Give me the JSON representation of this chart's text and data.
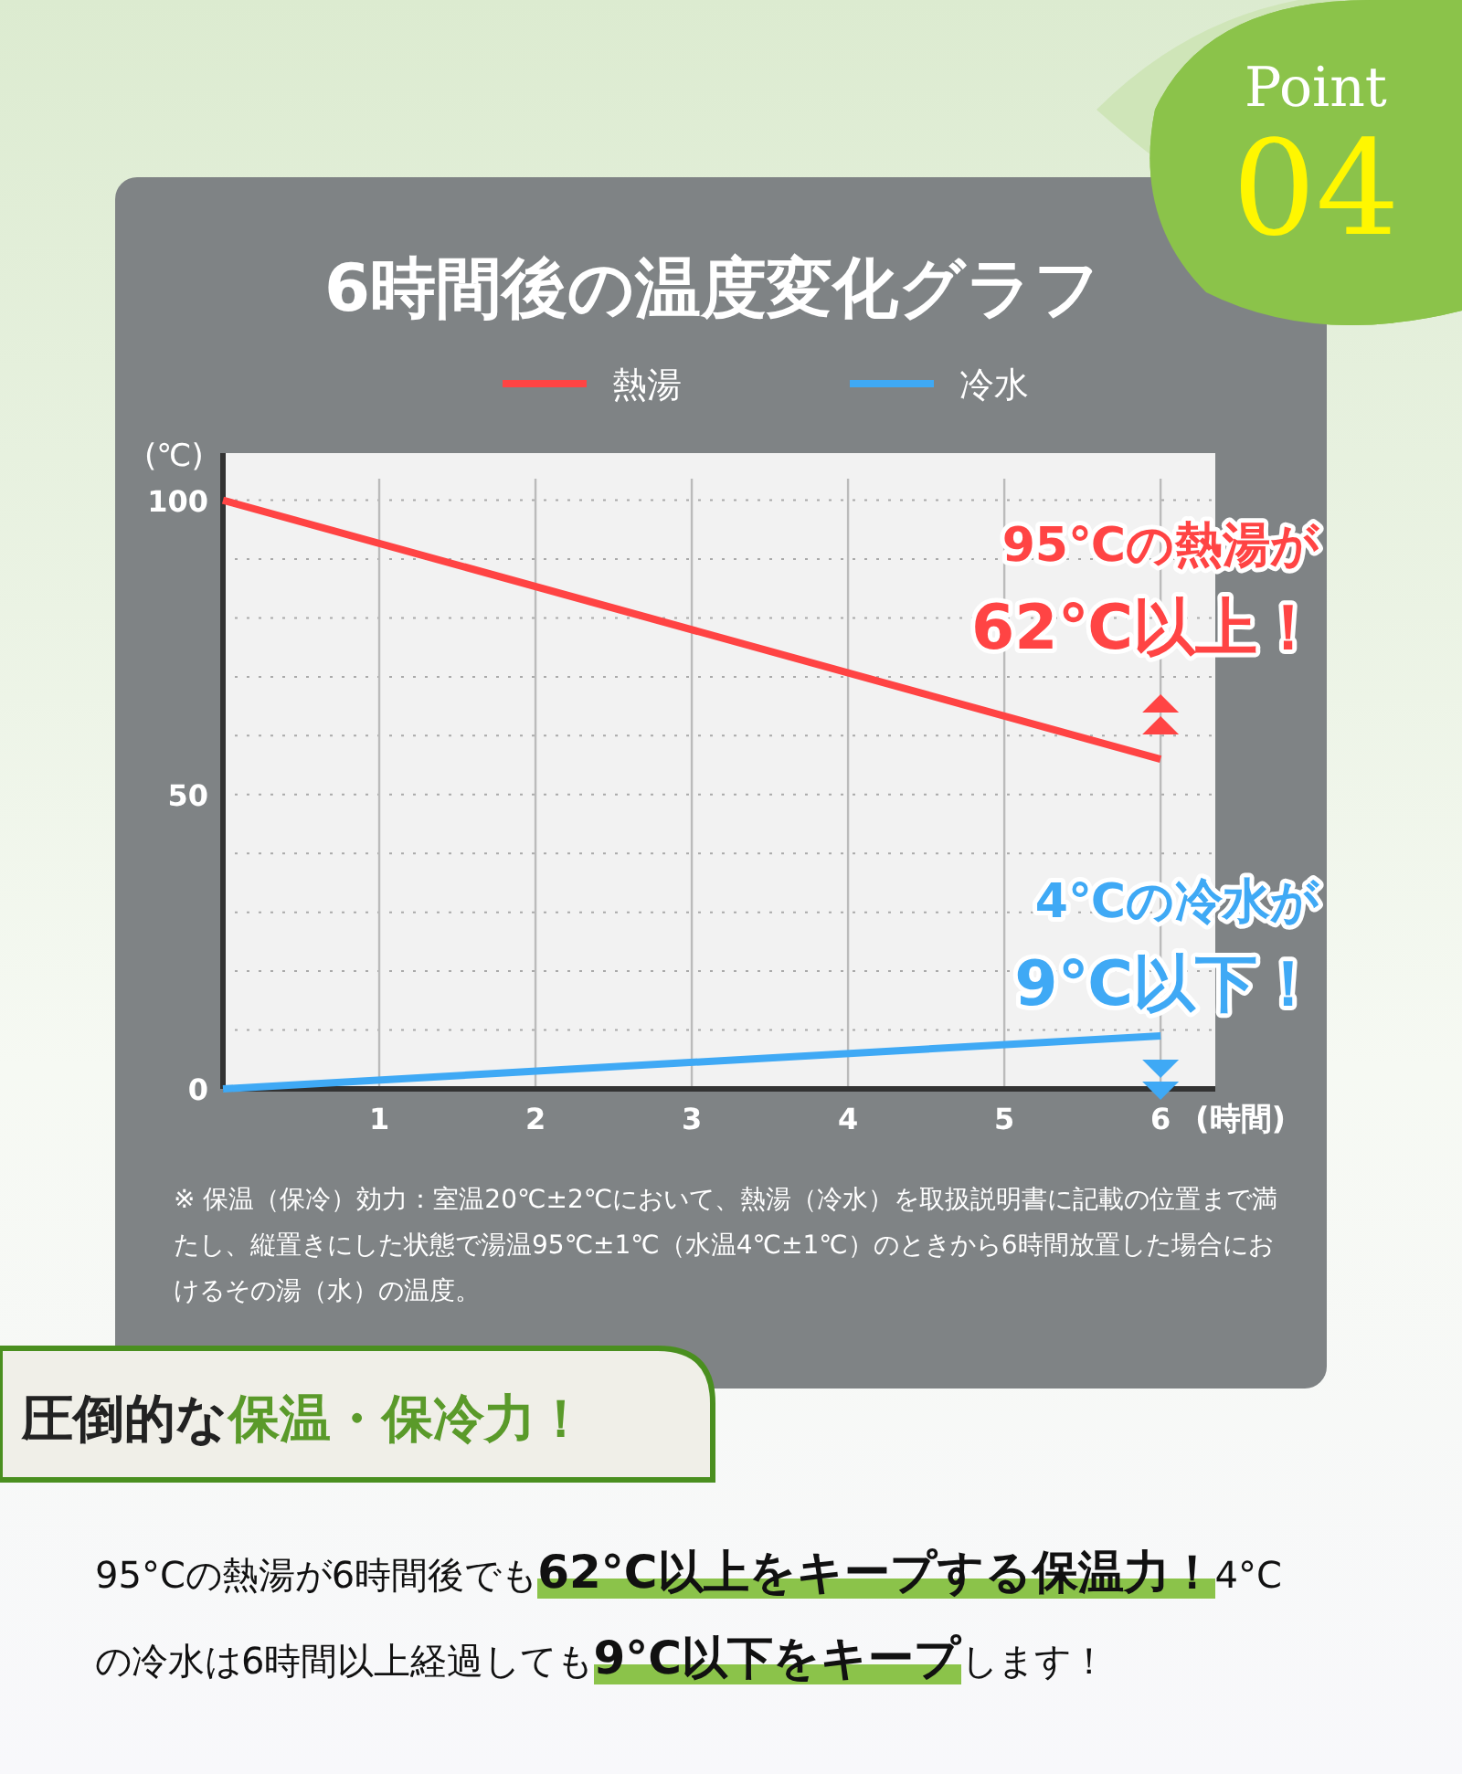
{
  "chart_data": {
    "type": "line",
    "title": "6時間後の温度変化グラフ",
    "xlabel": "(時間)",
    "ylabel": "(℃)",
    "xlim": [
      0,
      6.35
    ],
    "xticks": [
      1,
      2,
      3,
      4,
      5,
      6
    ],
    "x": [
      0,
      6
    ],
    "ylim": [
      0,
      108
    ],
    "yticks": [
      0,
      {
        "value": 10,
        "label": null
      },
      {
        "value": 20,
        "label": null
      },
      {
        "value": 30,
        "label": null
      },
      {
        "value": 40,
        "label": null
      },
      50,
      {
        "value": 60,
        "label": null
      },
      {
        "value": 70,
        "label": null
      },
      {
        "value": 80,
        "label": null
      },
      {
        "value": 90,
        "label": null
      },
      100
    ],
    "grid": true,
    "legend": "top",
    "series": [
      {
        "name": "熱湯",
        "color": "#ff4444",
        "values": [
          100,
          56
        ]
      },
      {
        "name": "冷水",
        "color": "#3fa9f5",
        "values": [
          0,
          9
        ]
      }
    ],
    "annotations": [
      "95℃の熱湯が",
      "62℃以上！",
      "4℃の冷水が",
      "9℃以下！",
      "※ 保温（保冷）効力：室温20℃±2℃において、熱湯（冷水）を取扱説明書に記載の位置まで満たし、縦置きにした状態で湯温95℃±1℃（水温4℃±1℃）のときから6時間放置した場合におけるその湯（水）の温度。",
      "Point",
      "04",
      "圧倒的な",
      "保温・保冷力！",
      "95°Cの熱湯が6時間後でも",
      "62°C以上をキープする保温力！",
      "4°Cの冷水は6時間以上経過しても",
      "9°C以下をキープ",
      "します！"
    ]
  }
}
